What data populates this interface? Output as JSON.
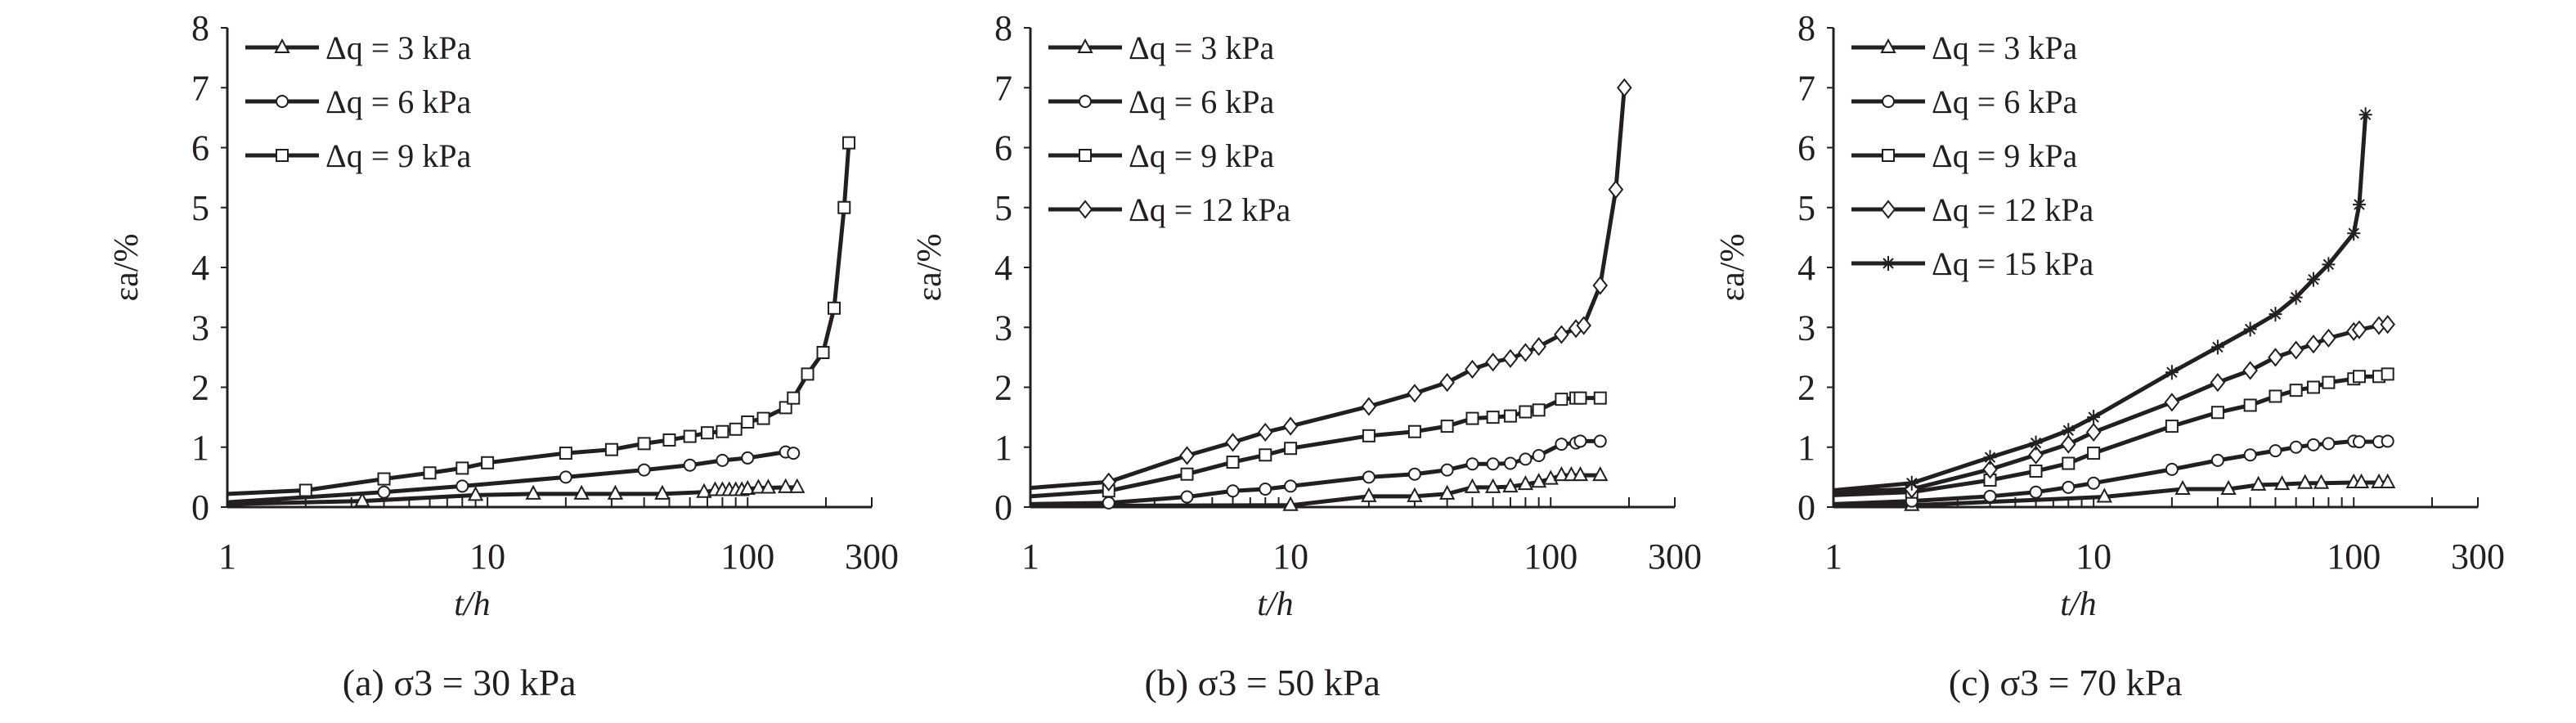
{
  "chart_data": [
    {
      "type": "line",
      "title": "(a) σ3 = 30 kPa",
      "caption_prefix": "(a) ",
      "caption_var": "σ",
      "caption_sub": "3",
      "caption_rest": " = 30 kPa",
      "xlabel": "t/h",
      "ylabel": "εa/%",
      "xscale": "log",
      "xlim": [
        1,
        300
      ],
      "ylim": [
        0,
        8
      ],
      "xticks": [
        "1",
        "10",
        "100",
        "300"
      ],
      "yticks": [
        "0",
        "1",
        "2",
        "3",
        "4",
        "5",
        "6",
        "7",
        "8"
      ],
      "legend_position": "top-left",
      "series": [
        {
          "name": "Δq = 3 kPa",
          "marker": "triangle",
          "x": [
            1,
            3.3,
            9,
            15,
            23,
            31,
            47,
            68,
            75,
            80,
            85,
            90,
            95,
            100,
            110,
            120,
            140,
            155
          ],
          "y": [
            0.05,
            0.1,
            0.2,
            0.22,
            0.22,
            0.22,
            0.22,
            0.25,
            0.28,
            0.28,
            0.28,
            0.28,
            0.28,
            0.3,
            0.32,
            0.32,
            0.33,
            0.33
          ]
        },
        {
          "name": "Δq = 6 kPa",
          "marker": "circle",
          "x": [
            1,
            4,
            8,
            20,
            40,
            60,
            80,
            100,
            140,
            150
          ],
          "y": [
            0.08,
            0.25,
            0.35,
            0.5,
            0.62,
            0.7,
            0.78,
            0.82,
            0.92,
            0.9
          ]
        },
        {
          "name": "Δq = 9 kPa",
          "marker": "square",
          "x": [
            1,
            2,
            4,
            6,
            8,
            10,
            20,
            30,
            40,
            50,
            60,
            70,
            80,
            90,
            100,
            115,
            140,
            150,
            170,
            195,
            215,
            235,
            245
          ],
          "y": [
            0.22,
            0.28,
            0.47,
            0.57,
            0.65,
            0.74,
            0.9,
            0.96,
            1.06,
            1.12,
            1.18,
            1.24,
            1.26,
            1.3,
            1.42,
            1.48,
            1.66,
            1.82,
            2.22,
            2.58,
            3.32,
            5.0,
            6.08
          ]
        }
      ]
    },
    {
      "type": "line",
      "title": "(b) σ3 = 50 kPa",
      "caption_prefix": "(b) ",
      "caption_var": "σ",
      "caption_sub": "3",
      "caption_rest": " = 50 kPa",
      "xlabel": "t/h",
      "ylabel": "εa/%",
      "xscale": "log",
      "xlim": [
        1,
        300
      ],
      "ylim": [
        0,
        8
      ],
      "xticks": [
        "1",
        "10",
        "100",
        "300"
      ],
      "yticks": [
        "0",
        "1",
        "2",
        "3",
        "4",
        "5",
        "6",
        "7",
        "8"
      ],
      "legend_position": "top-left",
      "series": [
        {
          "name": "Δq = 3 kPa",
          "marker": "triangle",
          "x": [
            1,
            10,
            20,
            30,
            40,
            50,
            60,
            70,
            80,
            90,
            100,
            110,
            120,
            130,
            155
          ],
          "y": [
            0.02,
            0.03,
            0.18,
            0.18,
            0.22,
            0.33,
            0.33,
            0.34,
            0.38,
            0.42,
            0.47,
            0.53,
            0.53,
            0.53,
            0.53
          ]
        },
        {
          "name": "Δq = 6 kPa",
          "marker": "circle",
          "x": [
            1,
            2,
            4,
            6,
            8,
            10,
            20,
            30,
            40,
            50,
            60,
            70,
            80,
            90,
            110,
            125,
            130,
            155
          ],
          "y": [
            0.05,
            0.07,
            0.17,
            0.27,
            0.3,
            0.35,
            0.5,
            0.55,
            0.62,
            0.72,
            0.72,
            0.73,
            0.8,
            0.86,
            1.05,
            1.07,
            1.1,
            1.1
          ]
        },
        {
          "name": "Δq = 9 kPa",
          "marker": "square",
          "x": [
            1,
            2,
            4,
            6,
            8,
            10,
            20,
            30,
            40,
            50,
            60,
            70,
            80,
            90,
            110,
            125,
            130,
            155
          ],
          "y": [
            0.18,
            0.27,
            0.55,
            0.75,
            0.87,
            0.98,
            1.19,
            1.26,
            1.35,
            1.48,
            1.5,
            1.52,
            1.59,
            1.62,
            1.8,
            1.82,
            1.82,
            1.82
          ]
        },
        {
          "name": "Δq = 12 kPa",
          "marker": "diamond",
          "x": [
            1,
            2,
            4,
            6,
            8,
            10,
            20,
            30,
            40,
            50,
            60,
            70,
            80,
            90,
            110,
            125,
            134,
            155,
            178,
            192
          ],
          "y": [
            0.32,
            0.42,
            0.86,
            1.08,
            1.25,
            1.35,
            1.68,
            1.9,
            2.08,
            2.3,
            2.42,
            2.48,
            2.58,
            2.68,
            2.88,
            2.98,
            3.03,
            3.7,
            5.3,
            7.0
          ]
        }
      ]
    },
    {
      "type": "line",
      "title": "(c) σ3 = 70 kPa",
      "caption_prefix": "(c) ",
      "caption_var": "σ",
      "caption_sub": "3",
      "caption_rest": " = 70 kPa",
      "xlabel": "t/h",
      "ylabel": "εa/%",
      "xscale": "log",
      "xlim": [
        1,
        300
      ],
      "ylim": [
        0,
        8
      ],
      "xticks": [
        "1",
        "10",
        "100",
        "300"
      ],
      "yticks": [
        "0",
        "1",
        "2",
        "3",
        "4",
        "5",
        "6",
        "7",
        "8"
      ],
      "legend_position": "top-left",
      "series": [
        {
          "name": "Δq = 3 kPa",
          "marker": "triangle",
          "x": [
            1,
            2,
            11,
            22,
            33,
            43,
            53,
            65,
            75,
            100,
            107,
            125,
            135
          ],
          "y": [
            0.02,
            0.03,
            0.17,
            0.3,
            0.3,
            0.37,
            0.38,
            0.4,
            0.4,
            0.41,
            0.41,
            0.41,
            0.41
          ]
        },
        {
          "name": "Δq = 6 kPa",
          "marker": "circle",
          "x": [
            1,
            2,
            4,
            6,
            8,
            10,
            20,
            30,
            40,
            50,
            60,
            70,
            80,
            100,
            105,
            125,
            135
          ],
          "y": [
            0.05,
            0.1,
            0.18,
            0.25,
            0.33,
            0.4,
            0.63,
            0.78,
            0.87,
            0.94,
            1.0,
            1.04,
            1.06,
            1.1,
            1.09,
            1.09,
            1.1
          ]
        },
        {
          "name": "Δq = 9 kPa",
          "marker": "square",
          "x": [
            1,
            2,
            4,
            6,
            8,
            10,
            20,
            30,
            40,
            50,
            60,
            70,
            80,
            100,
            105,
            125,
            135
          ],
          "y": [
            0.2,
            0.25,
            0.45,
            0.6,
            0.73,
            0.9,
            1.35,
            1.58,
            1.7,
            1.85,
            1.95,
            2.0,
            2.08,
            2.14,
            2.18,
            2.18,
            2.22
          ]
        },
        {
          "name": "Δq = 12 kPa",
          "marker": "diamond",
          "x": [
            1,
            2,
            4,
            6,
            8,
            10,
            20,
            30,
            40,
            50,
            60,
            70,
            80,
            100,
            105,
            125,
            135
          ],
          "y": [
            0.25,
            0.3,
            0.63,
            0.87,
            1.05,
            1.25,
            1.75,
            2.08,
            2.28,
            2.5,
            2.62,
            2.72,
            2.82,
            2.93,
            2.96,
            3.03,
            3.05
          ]
        },
        {
          "name": "Δq = 15 kPa",
          "marker": "asterisk",
          "x": [
            1,
            2,
            4,
            6,
            8,
            10,
            20,
            30,
            40,
            50,
            60,
            70,
            80,
            100,
            105,
            111
          ],
          "y": [
            0.28,
            0.4,
            0.83,
            1.07,
            1.28,
            1.5,
            2.25,
            2.67,
            2.97,
            3.22,
            3.5,
            3.8,
            4.05,
            4.57,
            5.05,
            6.55
          ]
        }
      ]
    }
  ]
}
